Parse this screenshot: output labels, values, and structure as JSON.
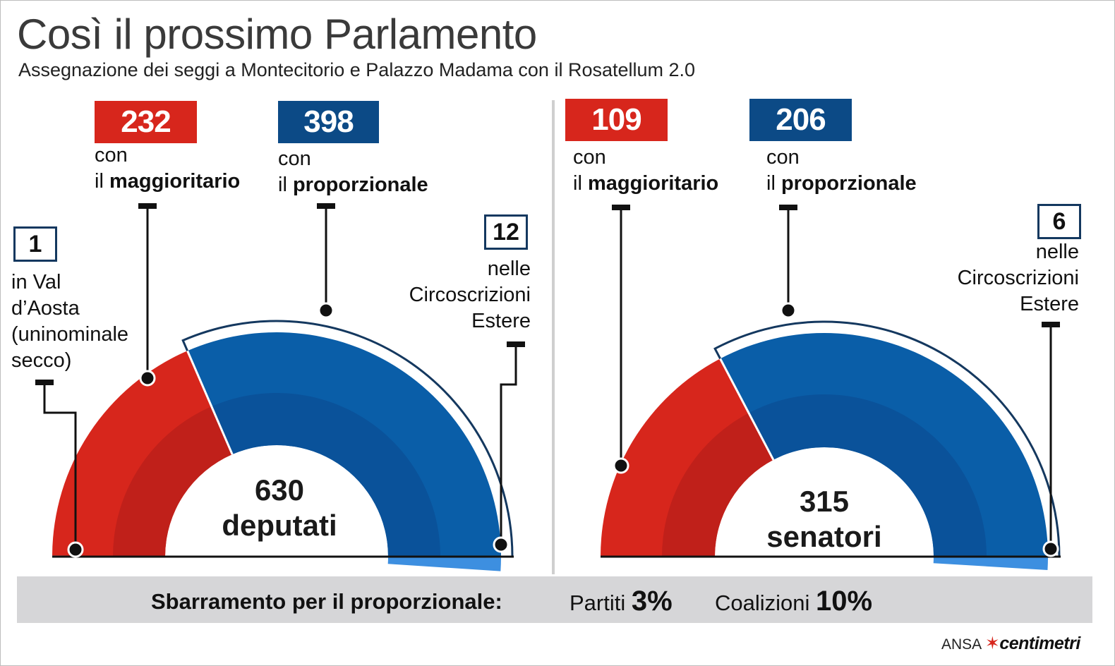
{
  "title": "Così il prossimo Parlamento",
  "subtitle": "Assegnazione dei seggi a Montecitorio e Palazzo Madama con il Rosatellum 2.0",
  "colors": {
    "maggioritario": "#d7261c",
    "maggioritario_inner": "#c0201a",
    "proporzionale": "#0a5ea8",
    "proporzionale_inner": "#0a529a",
    "estero": "#3d8fe0",
    "badge_blue": "#0c4a86",
    "outline": "#14385f"
  },
  "camera": {
    "maggioritario": {
      "value": "232",
      "con": "con",
      "il": "il",
      "label": "maggioritario"
    },
    "proporzionale": {
      "value": "398",
      "con": "con",
      "il": "il",
      "label": "proporzionale"
    },
    "valdaosta": {
      "value": "1",
      "lines": [
        "in Val",
        "d’Aosta",
        "(uninominale",
        "secco)"
      ]
    },
    "estero": {
      "value": "12",
      "lines": [
        "nelle",
        "Circoscrizioni",
        "Estere"
      ]
    },
    "total": "630",
    "total_label": "deputati"
  },
  "senato": {
    "maggioritario": {
      "value": "109",
      "con": "con",
      "il": "il",
      "label": "maggioritario"
    },
    "proporzionale": {
      "value": "206",
      "con": "con",
      "il": "il",
      "label": "proporzionale"
    },
    "estero": {
      "value": "6",
      "lines": [
        "nelle",
        "Circoscrizioni",
        "Estere"
      ]
    },
    "total": "315",
    "total_label": "senatori"
  },
  "sbarramento": {
    "label": "Sbarramento per il proporzionale:",
    "partiti_label": "Partiti",
    "partiti_value": "3%",
    "coalizioni_label": "Coalizioni",
    "coalizioni_value": "10%"
  },
  "credit": {
    "agency": "ANSA",
    "brand_mark": "✶",
    "brand": "centimetri"
  },
  "chart_data": [
    {
      "type": "pie",
      "title": "630 deputati",
      "categories": [
        "in Val d’Aosta (uninominale secco)",
        "con il maggioritario",
        "con il proporzionale",
        "nelle Circoscrizioni Estere"
      ],
      "values": [
        1,
        232,
        398,
        12
      ],
      "total": 630
    },
    {
      "type": "pie",
      "title": "315 senatori",
      "categories": [
        "con il maggioritario",
        "con il proporzionale",
        "nelle Circoscrizioni Estere"
      ],
      "values": [
        109,
        206,
        6
      ],
      "total": 315
    }
  ]
}
